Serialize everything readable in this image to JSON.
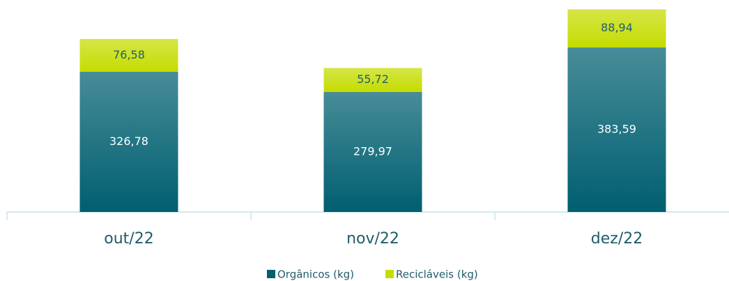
{
  "chart_data": {
    "type": "stacked_bar",
    "categories": [
      "out/22",
      "nov/22",
      "dez/22"
    ],
    "series": [
      {
        "name": "Orgânicos (kg)",
        "color": "#005f70",
        "values": [
          326.78,
          279.97,
          383.59
        ],
        "value_labels": [
          "326,78",
          "279,97",
          "383,59"
        ]
      },
      {
        "name": "Recicláveis (kg)",
        "color": "#c5dc00",
        "values": [
          76.58,
          55.72,
          88.94
        ],
        "value_labels": [
          "76,58",
          "55,72",
          "88,94"
        ]
      }
    ],
    "ylim": [
      0,
      500
    ],
    "legend": "bottom"
  }
}
